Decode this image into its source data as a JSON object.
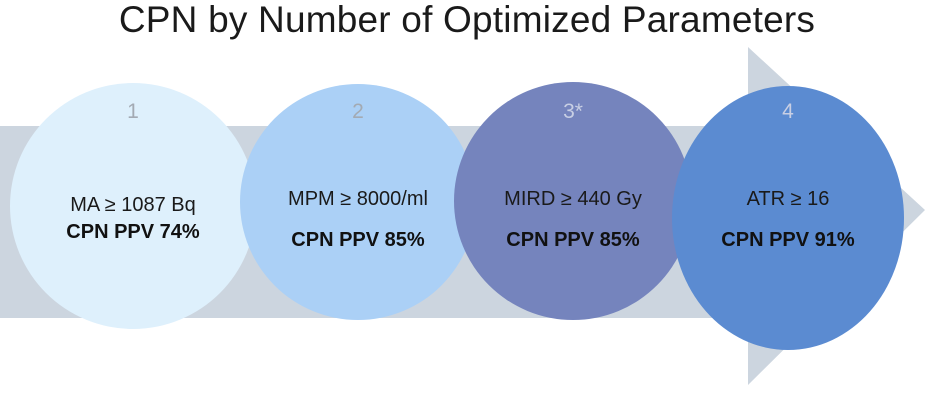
{
  "title": "CPN by Number of Optimized Parameters",
  "colors": {
    "arrow": "#ccd5df",
    "circle_1": "#def0fc",
    "circle_2": "#abd0f6",
    "circle_3": "#7584bd",
    "circle_4": "#5b8bd1",
    "number_light": "#a3aab3",
    "number_dark": "#c8cfe4"
  },
  "steps": [
    {
      "number": "1",
      "parameter": "MA ≥ 1087 Bq",
      "ppv": "CPN PPV 74%"
    },
    {
      "number": "2",
      "parameter": "MPM ≥ 8000/ml",
      "ppv": "CPN PPV 85%"
    },
    {
      "number": "3*",
      "parameter": "MIRD ≥ 440 Gy",
      "ppv": "CPN PPV 85%"
    },
    {
      "number": "4",
      "parameter": "ATR ≥ 16",
      "ppv": "CPN PPV 91%"
    }
  ]
}
